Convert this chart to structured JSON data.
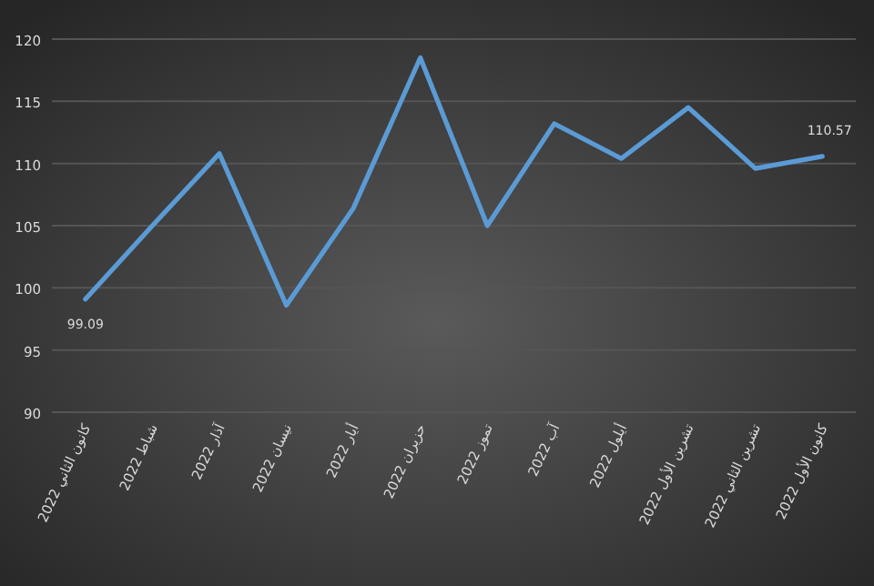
{
  "chart_data": {
    "type": "line",
    "categories": [
      "كانون الثاني 2022",
      "شباط 2022",
      "آذار 2022",
      "نيسان 2022",
      "أيار 2022",
      "حزيران 2022",
      "تموز 2022",
      "آب 2022",
      "أيلول 2022",
      "تشرين الأول 2022",
      "تشرين الثاني 2022",
      "كانون الأول 2022"
    ],
    "series": [
      {
        "color": "#5b9bd5",
        "values": [
          99.09,
          105.0,
          110.8,
          98.6,
          106.4,
          118.5,
          105.0,
          113.2,
          110.4,
          114.5,
          109.6,
          110.57
        ],
        "value_labels": [
          "99.09",
          null,
          null,
          null,
          null,
          null,
          null,
          null,
          null,
          null,
          null,
          "110.57"
        ]
      }
    ],
    "ylim": [
      90,
      120
    ],
    "yticks": [
      90,
      95,
      100,
      105,
      110,
      115,
      120
    ],
    "grid": "y",
    "marker": "none",
    "line_style": "solid"
  }
}
